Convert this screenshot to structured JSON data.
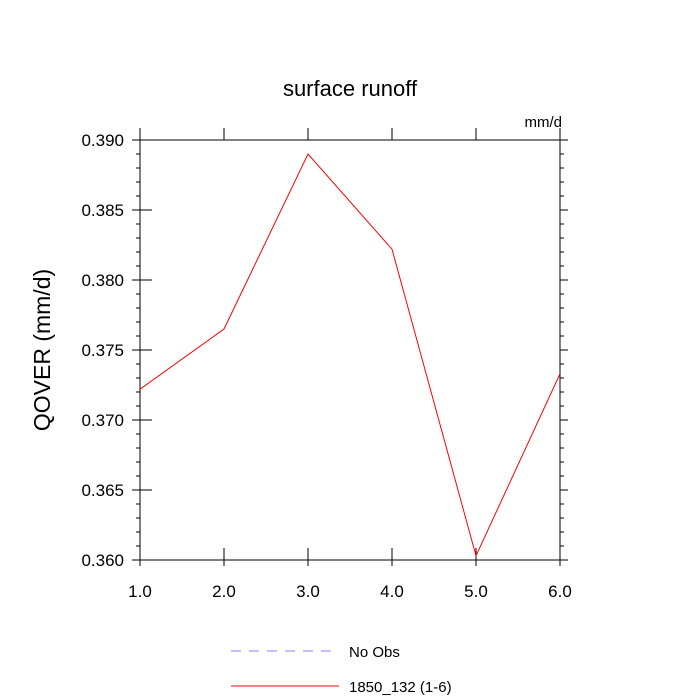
{
  "chart_data": {
    "type": "line",
    "title": "surface runoff",
    "units_label": "mm/d",
    "ylabel": "QOVER  (mm/d)",
    "xlabel": "",
    "x": [
      1.0,
      2.0,
      3.0,
      4.0,
      5.0,
      6.0
    ],
    "xlim": [
      1.0,
      6.0
    ],
    "ylim": [
      0.36,
      0.39
    ],
    "x_ticks": [
      "1.0",
      "2.0",
      "3.0",
      "4.0",
      "5.0",
      "6.0"
    ],
    "y_ticks": [
      "0.390",
      "0.385",
      "0.380",
      "0.375",
      "0.370",
      "0.365",
      "0.360"
    ],
    "y_tick_values": [
      0.39,
      0.385,
      0.38,
      0.375,
      0.37,
      0.365,
      0.36
    ],
    "grid": false,
    "series": [
      {
        "name": "1850_132 (1-6)",
        "color": "#ff0000",
        "dash": "solid",
        "values": [
          0.3722,
          0.3765,
          0.389,
          0.3822,
          0.3603,
          0.3733
        ]
      }
    ],
    "legend": {
      "placement": "bottom-center",
      "entries": [
        {
          "label": "No Obs",
          "color": "#8080ff",
          "dash": "dashed"
        },
        {
          "label": "1850_132 (1-6)",
          "color": "#ff0000",
          "dash": "solid"
        }
      ]
    }
  }
}
